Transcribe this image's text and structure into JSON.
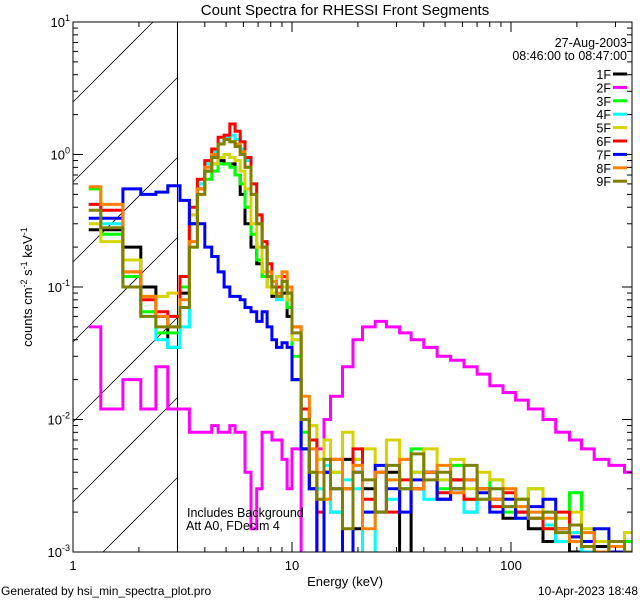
{
  "chart_data": {
    "type": "line",
    "title": "Count Spectra for RHESSI Front Segments",
    "xlabel": "Energy (keV)",
    "ylabel_parts": [
      "counts cm",
      "-2",
      " s",
      "-1",
      " keV",
      "-1"
    ],
    "xscale": "log",
    "yscale": "log",
    "xlim": [
      1,
      357
    ],
    "ylim": [
      0.001,
      10
    ],
    "x_ticks": [
      {
        "value": 1,
        "label": "1"
      },
      {
        "value": 10,
        "label": "10"
      },
      {
        "value": 100,
        "label": "100"
      }
    ],
    "y_ticks": [
      {
        "value": 10,
        "base": "10",
        "exp": "1"
      },
      {
        "value": 1,
        "base": "10",
        "exp": "0"
      },
      {
        "value": 0.1,
        "base": "10",
        "exp": "-1"
      },
      {
        "value": 0.01,
        "base": "10",
        "exp": "-2"
      },
      {
        "value": 0.001,
        "base": "10",
        "exp": "-3"
      }
    ],
    "grid": false,
    "shaded_region_keV": [
      1,
      3
    ],
    "date": "27-Aug-2003",
    "time_range": "08:46:00 to 08:47:00",
    "annotations": [
      "Includes Background",
      "Att A0, FDecim 4"
    ],
    "legend_placement": "top-right",
    "energy_edges": [
      1.18,
      1.34,
      1.69,
      2.04,
      2.39,
      2.71,
      3.08,
      3.4,
      3.7,
      4.0,
      4.3,
      4.6,
      4.9,
      5.2,
      5.5,
      5.8,
      6.1,
      6.5,
      6.9,
      7.3,
      7.7,
      8.1,
      8.5,
      9.0,
      9.5,
      10,
      11,
      12,
      13,
      14,
      15,
      17,
      19,
      21,
      24,
      27,
      31,
      35,
      40,
      46,
      53,
      61,
      70,
      80,
      92,
      105,
      120,
      140,
      160,
      185,
      210,
      240,
      280,
      330,
      360
    ],
    "series": [
      {
        "name": "1F",
        "color": "#000000",
        "values": [
          0.27,
          0.27,
          0.2,
          0.1,
          0.06,
          0.035,
          0.09,
          0.3,
          0.55,
          0.75,
          0.85,
          0.9,
          0.85,
          0.85,
          0.7,
          0.5,
          0.3,
          0.2,
          0.15,
          0.12,
          0.1,
          0.085,
          0.1,
          0.09,
          0.06,
          0.02,
          0.006,
          0.003,
          0.0008,
          0.004,
          0.002,
          0.005,
          0.0015,
          0.003,
          0.002,
          0.004,
          0.0009,
          0.003,
          0.004,
          0.0025,
          0.0035,
          0.002,
          0.003,
          0.0025,
          0.0018,
          0.002,
          0.0015,
          0.0012,
          0.0015,
          0.001,
          0.0009,
          0.0011,
          0.0008,
          0.0007
        ]
      },
      {
        "name": "2F",
        "color": "#ff00ff",
        "values": [
          0.05,
          0.012,
          0.02,
          0.012,
          0.025,
          0.012,
          0.012,
          0.008,
          0.008,
          0.008,
          0.009,
          0.008,
          0.008,
          0.009,
          0.008,
          0.008,
          0.004,
          0.0015,
          0.003,
          0.008,
          0.008,
          0.007,
          0.007,
          0.005,
          0.003,
          0.006,
          0.0005,
          0.0005,
          0.006,
          0.01,
          0.015,
          0.025,
          0.04,
          0.05,
          0.055,
          0.05,
          0.045,
          0.04,
          0.035,
          0.03,
          0.028,
          0.025,
          0.022,
          0.018,
          0.016,
          0.014,
          0.012,
          0.01,
          0.008,
          0.007,
          0.006,
          0.005,
          0.0045,
          0.004
        ]
      },
      {
        "name": "3F",
        "color": "#00ff00",
        "values": [
          0.55,
          0.25,
          0.12,
          0.065,
          0.045,
          0.045,
          0.1,
          0.3,
          0.55,
          0.65,
          0.75,
          0.85,
          0.85,
          0.8,
          0.7,
          0.6,
          0.4,
          0.25,
          0.16,
          0.12,
          0.1,
          0.09,
          0.12,
          0.1,
          0.07,
          0.03,
          0.008,
          0.004,
          0.005,
          0.0025,
          0.004,
          0.003,
          0.005,
          0.002,
          0.004,
          0.0035,
          0.003,
          0.006,
          0.004,
          0.003,
          0.0045,
          0.0025,
          0.003,
          0.0035,
          0.002,
          0.0025,
          0.003,
          0.0015,
          0.0012,
          0.0028,
          0.001,
          0.0009,
          0.0008,
          0.0012
        ]
      },
      {
        "name": "4F",
        "color": "#00ffff",
        "values": [
          0.42,
          0.3,
          0.1,
          0.06,
          0.04,
          0.035,
          0.05,
          0.2,
          0.6,
          0.85,
          1.05,
          1.2,
          1.35,
          1.4,
          1.3,
          1.1,
          0.9,
          0.6,
          0.35,
          0.2,
          0.13,
          0.1,
          0.08,
          0.11,
          0.08,
          0.04,
          0.012,
          0.006,
          0.003,
          0.0045,
          0.002,
          0.0035,
          0.003,
          0.0008,
          0.004,
          0.0025,
          0.003,
          0.004,
          0.0025,
          0.0035,
          0.003,
          0.002,
          0.0025,
          0.003,
          0.0022,
          0.0018,
          0.002,
          0.0016,
          0.0012,
          0.0014,
          0.001,
          0.0009,
          0.0011,
          0.0008
        ]
      },
      {
        "name": "5F",
        "color": "#d4d400",
        "values": [
          0.3,
          0.22,
          0.16,
          0.085,
          0.085,
          0.09,
          0.12,
          0.35,
          0.55,
          0.75,
          0.85,
          0.95,
          1.0,
          0.95,
          0.9,
          0.75,
          0.55,
          0.3,
          0.2,
          0.13,
          0.1,
          0.09,
          0.12,
          0.1,
          0.08,
          0.04,
          0.012,
          0.009,
          0.005,
          0.007,
          0.004,
          0.008,
          0.005,
          0.006,
          0.004,
          0.007,
          0.005,
          0.004,
          0.006,
          0.0035,
          0.005,
          0.003,
          0.004,
          0.0035,
          0.003,
          0.0025,
          0.003,
          0.002,
          0.0018,
          0.002,
          0.0015,
          0.0012,
          0.001,
          0.0014
        ]
      },
      {
        "name": "6F",
        "color": "#ff0000",
        "values": [
          0.42,
          0.38,
          0.13,
          0.08,
          0.065,
          0.06,
          0.12,
          0.4,
          0.65,
          0.9,
          1.1,
          1.35,
          1.4,
          1.7,
          1.5,
          1.25,
          0.95,
          0.6,
          0.35,
          0.22,
          0.15,
          0.11,
          0.1,
          0.12,
          0.09,
          0.05,
          0.012,
          0.007,
          0.002,
          0.004,
          0.005,
          0.003,
          0.006,
          0.0025,
          0.004,
          0.002,
          0.0035,
          0.003,
          0.004,
          0.0028,
          0.0035,
          0.0025,
          0.003,
          0.0022,
          0.0028,
          0.002,
          0.0018,
          0.0015,
          0.002,
          0.0013,
          0.0011,
          0.001,
          0.0009,
          0.0008
        ]
      },
      {
        "name": "7F",
        "color": "#0000ff",
        "values": [
          0.33,
          0.33,
          0.55,
          0.5,
          0.52,
          0.58,
          0.45,
          0.3,
          0.3,
          0.2,
          0.17,
          0.13,
          0.1,
          0.085,
          0.085,
          0.08,
          0.07,
          0.065,
          0.055,
          0.065,
          0.05,
          0.04,
          0.035,
          0.038,
          0.035,
          0.02,
          0.006,
          0.003,
          0.0008,
          0.004,
          0.003,
          0.0008,
          0.004,
          0.002,
          0.0045,
          0.003,
          0.002,
          0.0035,
          0.004,
          0.0025,
          0.003,
          0.0035,
          0.0028,
          0.002,
          0.0025,
          0.0018,
          0.0022,
          0.0025,
          0.0015,
          0.0013,
          0.0012,
          0.0015,
          0.001,
          0.0009
        ]
      },
      {
        "name": "8F",
        "color": "#ff8000",
        "values": [
          0.57,
          0.42,
          0.13,
          0.085,
          0.06,
          0.05,
          0.08,
          0.22,
          0.55,
          0.8,
          1.0,
          1.2,
          1.3,
          1.25,
          1.2,
          1.05,
          0.8,
          0.5,
          0.3,
          0.2,
          0.13,
          0.11,
          0.09,
          0.13,
          0.1,
          0.05,
          0.015,
          0.006,
          0.004,
          0.0025,
          0.005,
          0.003,
          0.0045,
          0.0015,
          0.004,
          0.0035,
          0.005,
          0.003,
          0.004,
          0.0045,
          0.0028,
          0.0035,
          0.003,
          0.0025,
          0.003,
          0.0022,
          0.002,
          0.0018,
          0.0015,
          0.0012,
          0.0014,
          0.001,
          0.0011,
          0.0009
        ]
      },
      {
        "name": "9F",
        "color": "#808000",
        "values": [
          0.38,
          0.28,
          0.1,
          0.06,
          0.05,
          0.05,
          0.07,
          0.2,
          0.5,
          0.75,
          0.95,
          1.2,
          1.3,
          1.25,
          1.15,
          1.0,
          0.8,
          0.5,
          0.3,
          0.2,
          0.12,
          0.1,
          0.085,
          0.11,
          0.09,
          0.045,
          0.01,
          0.004,
          0.0025,
          0.005,
          0.003,
          0.0015,
          0.004,
          0.0035,
          0.002,
          0.0045,
          0.003,
          0.0055,
          0.0035,
          0.004,
          0.003,
          0.0045,
          0.0025,
          0.003,
          0.0022,
          0.0025,
          0.0018,
          0.002,
          0.0014,
          0.0016,
          0.0011,
          0.0009,
          0.0012,
          0.001
        ]
      }
    ]
  },
  "footer": {
    "generated_by": "Generated by hsi_min_spectra_plot.pro",
    "timestamp": "10-Apr-2023 18:48"
  }
}
